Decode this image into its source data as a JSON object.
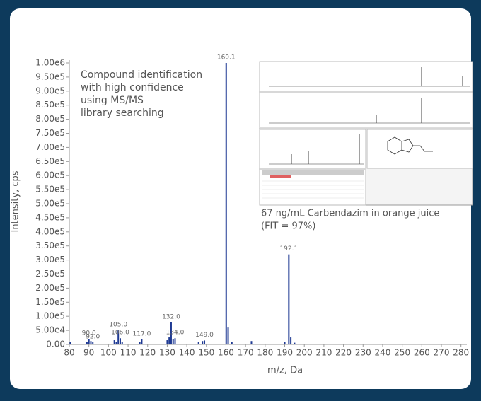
{
  "chart_data": {
    "type": "spectrum",
    "annotation": [
      "Compound identification",
      "with high confidence",
      "using MS/MS",
      "library searching"
    ],
    "caption": [
      "67 ng/mL Carbendazim in orange juice",
      "(FIT = 97%)"
    ],
    "xlabel": "m/z, Da",
    "ylabel": "Intensity, cps",
    "color": "#1f3a93",
    "x": [
      80.5,
      89.0,
      90.0,
      91.0,
      92.0,
      103.0,
      104.0,
      105.0,
      106.0,
      107.0,
      116.0,
      117.0,
      130.0,
      131.0,
      132.0,
      133.0,
      134.0,
      146.0,
      148.0,
      149.0,
      160.1,
      161.1,
      163.0,
      173.0,
      190.0,
      192.1,
      193.1,
      195.0
    ],
    "values": [
      8000,
      10000,
      20000,
      12000,
      8000,
      15000,
      10000,
      50000,
      22000,
      8000,
      10000,
      18000,
      15000,
      25000,
      78000,
      20000,
      22000,
      8000,
      12000,
      14000,
      1000000,
      60000,
      8000,
      12000,
      8000,
      320000,
      25000,
      6000
    ],
    "peak_labels": [
      null,
      null,
      "90.0",
      null,
      "92.0",
      null,
      null,
      "105.0",
      "106.0",
      null,
      null,
      "117.0",
      null,
      null,
      "132.0",
      null,
      "134.0",
      null,
      null,
      "149.0",
      "160.1",
      null,
      null,
      null,
      null,
      "192.1",
      null,
      null
    ],
    "xlim": [
      80,
      283
    ],
    "xticks": [
      80,
      90,
      100,
      110,
      120,
      130,
      140,
      150,
      160,
      170,
      180,
      190,
      200,
      210,
      220,
      230,
      240,
      250,
      260,
      270,
      280
    ],
    "ylim": [
      0,
      1000000
    ],
    "yticks": [
      {
        "value": 0,
        "label": "0.00"
      },
      {
        "value": 50000,
        "label": "5.00e4"
      },
      {
        "value": 100000,
        "label": "1.00e5"
      },
      {
        "value": 150000,
        "label": "1.50e5"
      },
      {
        "value": 200000,
        "label": "2.00e5"
      },
      {
        "value": 250000,
        "label": "2.50e5"
      },
      {
        "value": 300000,
        "label": "3.00e5"
      },
      {
        "value": 350000,
        "label": "3.50e5"
      },
      {
        "value": 400000,
        "label": "4.00e5"
      },
      {
        "value": 450000,
        "label": "4.50e5"
      },
      {
        "value": 500000,
        "label": "5.00e5"
      },
      {
        "value": 550000,
        "label": "5.50e5"
      },
      {
        "value": 600000,
        "label": "6.00e5"
      },
      {
        "value": 650000,
        "label": "6.50e5"
      },
      {
        "value": 700000,
        "label": "7.00e5"
      },
      {
        "value": 750000,
        "label": "7.50e5"
      },
      {
        "value": 800000,
        "label": "8.00e5"
      },
      {
        "value": 850000,
        "label": "8.50e5"
      },
      {
        "value": 900000,
        "label": "9.00e5"
      },
      {
        "value": 950000,
        "label": "9.50e5"
      },
      {
        "value": 1000000,
        "label": "1.00e6"
      }
    ]
  }
}
